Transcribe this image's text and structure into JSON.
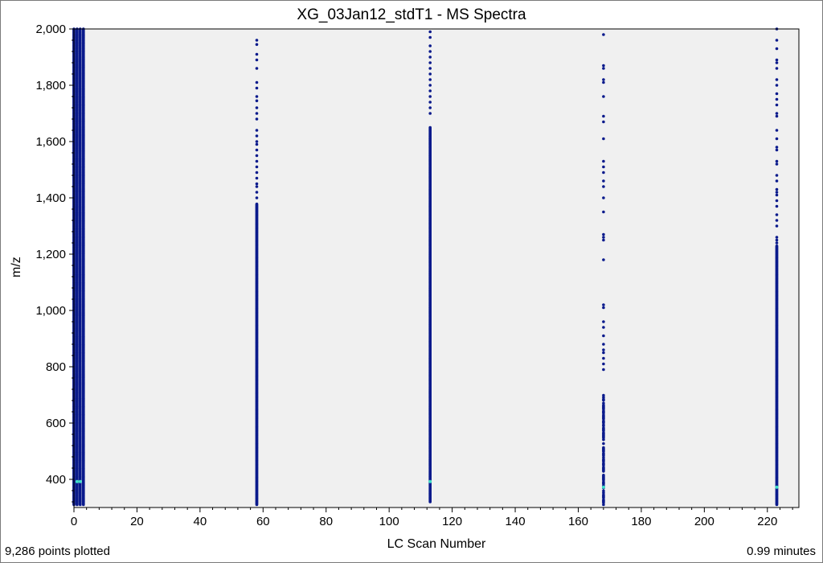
{
  "chart_data": {
    "type": "scatter",
    "title": "XG_03Jan12_stdT1 - MS Spectra",
    "xlabel": "LC Scan Number",
    "ylabel": "m/z",
    "xlim": [
      0,
      230
    ],
    "ylim": [
      300,
      2000
    ],
    "x_ticks": [
      0,
      20,
      40,
      60,
      80,
      100,
      120,
      140,
      160,
      180,
      200,
      220
    ],
    "x_tick_labels": [
      "0",
      "20",
      "40",
      "60",
      "80",
      "100",
      "120",
      "140",
      "160",
      "180",
      "200",
      "220"
    ],
    "y_ticks": [
      400,
      600,
      800,
      1000,
      1200,
      1400,
      1600,
      1800,
      2000
    ],
    "y_tick_labels": [
      "400",
      "600",
      "800",
      "1,000",
      "1,200",
      "1,400",
      "1,600",
      "1,800",
      "2,000"
    ],
    "grid": false,
    "background": "#f0f0f0",
    "point_color": "#0a1a8c",
    "highlight_color": "#3fe0c8",
    "series": [
      {
        "scan": 0,
        "mz_range": [
          310,
          2000
        ],
        "density": "dense"
      },
      {
        "scan": 1,
        "mz_range": [
          310,
          2000
        ],
        "density": "dense"
      },
      {
        "scan": 2,
        "mz_range": [
          310,
          2000
        ],
        "density": "dense"
      },
      {
        "scan": 3,
        "mz_range": [
          310,
          2000
        ],
        "density": "dense"
      },
      {
        "scan": 58,
        "mz_range": [
          310,
          1960
        ],
        "density": "medium",
        "sparse_mz": [
          1960,
          1945,
          1910,
          1890,
          1860,
          1810,
          1790,
          1760,
          1745,
          1720,
          1700,
          1680,
          1640,
          1620,
          1600,
          1590,
          1570,
          1550,
          1530,
          1510,
          1490,
          1470,
          1450,
          1440,
          1420,
          1400
        ]
      },
      {
        "scan": 113,
        "mz_range": [
          320,
          1990
        ],
        "density": "medium",
        "sparse_mz": [
          1990,
          1970,
          1940,
          1920,
          1900,
          1880,
          1860,
          1840,
          1820,
          1800,
          1780,
          1760,
          1740,
          1720,
          1700
        ]
      },
      {
        "scan": 168,
        "mz_range": [
          310,
          1980
        ],
        "density": "sparse",
        "sparse_mz": [
          1980,
          1870,
          1860,
          1820,
          1810,
          1760,
          1690,
          1670,
          1610,
          1530,
          1510,
          1490,
          1460,
          1440,
          1400,
          1350,
          1270,
          1260,
          1250,
          1180,
          1020,
          1010,
          960,
          940,
          910,
          880,
          860,
          850,
          830,
          810,
          790
        ]
      },
      {
        "scan": 223,
        "mz_range": [
          310,
          2000
        ],
        "density": "medium",
        "sparse_mz": [
          2000,
          1960,
          1930,
          1890,
          1880,
          1860,
          1820,
          1800,
          1770,
          1750,
          1730,
          1700,
          1690,
          1640,
          1610,
          1580,
          1570,
          1530,
          1520,
          1480,
          1460,
          1430,
          1420,
          1410,
          1390,
          1370,
          1340,
          1320,
          1300,
          1260,
          1250,
          1240
        ]
      }
    ],
    "highlights": [
      {
        "scan": 1,
        "mz": 392
      },
      {
        "scan": 2,
        "mz": 392
      },
      {
        "scan": 113,
        "mz": 392
      },
      {
        "scan": 168,
        "mz": 372
      },
      {
        "scan": 223,
        "mz": 372
      }
    ]
  },
  "footer": {
    "points_plotted": "9,286 points plotted",
    "elapsed": "0.99 minutes"
  }
}
